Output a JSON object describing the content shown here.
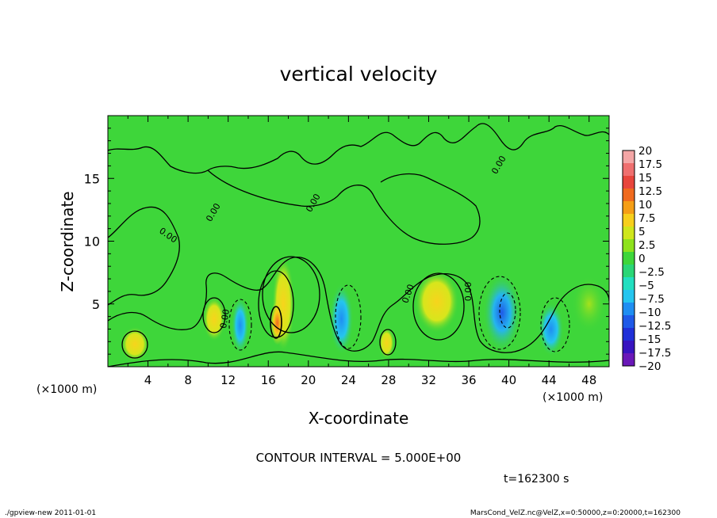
{
  "chart_data": {
    "type": "heatmap",
    "title": "vertical velocity",
    "xlabel": "X-coordinate",
    "ylabel": "Z-coordinate",
    "x_unit": "(×1000 m)",
    "y_unit": "(×1000 m)",
    "xlim": [
      0,
      50
    ],
    "ylim": [
      0,
      20
    ],
    "x_ticks": [
      "4",
      "8",
      "12",
      "16",
      "20",
      "24",
      "28",
      "32",
      "36",
      "40",
      "44",
      "48"
    ],
    "y_ticks": [
      "5",
      "10",
      "15"
    ],
    "colorbar": {
      "levels": [
        "20",
        "17.5",
        "15",
        "12.5",
        "10",
        "7.5",
        "5",
        "2.5",
        "0",
        "−2.5",
        "−5",
        "−7.5",
        "−10",
        "−12.5",
        "−15",
        "−17.5",
        "−20"
      ],
      "colors": [
        "#f4a6a6",
        "#ef6f6f",
        "#e8453c",
        "#f06a1e",
        "#f59e16",
        "#f7cf1c",
        "#cfe61c",
        "#8ee21c",
        "#3ed63a",
        "#2ad676",
        "#22dfc0",
        "#25c5ef",
        "#1f8ef2",
        "#1f5ae8",
        "#2030d8",
        "#3814c0",
        "#6a18b8"
      ]
    },
    "background_color": "#3ed63a",
    "contour_labels": [
      "0.00",
      "0.00",
      "0.00",
      "0.00",
      "0.00",
      "0.00",
      "0.00"
    ],
    "contour_interval": "CONTOUR INTERVAL = 5.000E+00",
    "time": "t=162300 s",
    "cells": [
      {
        "x": 2.7,
        "z": 1.8,
        "value": 6
      },
      {
        "x": 10.6,
        "z": 3.8,
        "value": 6
      },
      {
        "x": 13.2,
        "z": 3.3,
        "value": -8
      },
      {
        "x": 17.5,
        "z": 5.0,
        "value": 9
      },
      {
        "x": 16.9,
        "z": 3.5,
        "value": 12
      },
      {
        "x": 23.3,
        "z": 3.8,
        "value": -6
      },
      {
        "x": 27.8,
        "z": 1.9,
        "value": 6
      },
      {
        "x": 32.8,
        "z": 5.2,
        "value": 7
      },
      {
        "x": 39.3,
        "z": 4.3,
        "value": -11
      },
      {
        "x": 44.2,
        "z": 3.0,
        "value": -4
      },
      {
        "x": 48.0,
        "z": 5.0,
        "value": 3
      }
    ]
  },
  "footer": {
    "left": "./gpview-new  2011-01-01",
    "right": "MarsCond_VelZ.nc@VelZ,x=0:50000,z=0:20000,t=162300"
  }
}
